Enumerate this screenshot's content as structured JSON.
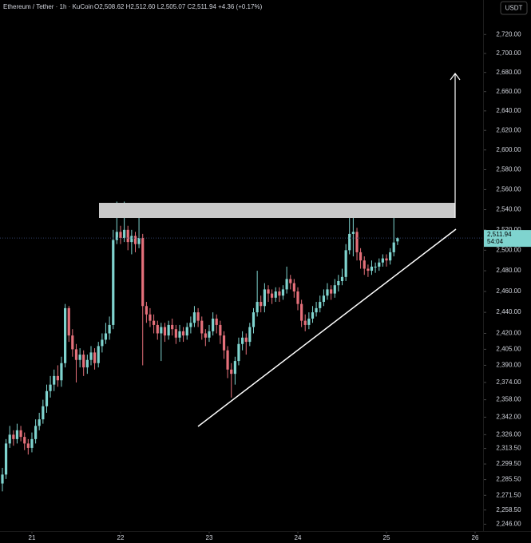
{
  "chart_data": {
    "type": "candlestick",
    "title": "Ethereum / Tether · 1h · KuCoin",
    "subtitle": "O2,508.62 H2,512.60 L2,505.07 C2,511.94 +4.36 (+0.17%)",
    "currency": "USDT",
    "price_label": "2,511.94",
    "countdown": "54:04",
    "log": true,
    "up_color": "#7fd4cf",
    "down_color": "#e5707a",
    "xlim": [
      20.64,
      26.09
    ],
    "xticks": [
      21,
      22,
      23,
      24,
      25,
      26
    ],
    "ylim": [
      2240,
      2757
    ],
    "yticks": [
      {
        "value": 2720,
        "label": "2,720.00"
      },
      {
        "value": 2700,
        "label": "2,700.00"
      },
      {
        "value": 2680,
        "label": "2,680.00"
      },
      {
        "value": 2660,
        "label": "2,660.00"
      },
      {
        "value": 2640,
        "label": "2,640.00"
      },
      {
        "value": 2620,
        "label": "2,620.00"
      },
      {
        "value": 2600,
        "label": "2,600.00"
      },
      {
        "value": 2580,
        "label": "2,580.00"
      },
      {
        "value": 2560,
        "label": "2,560.00"
      },
      {
        "value": 2540,
        "label": "2,540.00"
      },
      {
        "value": 2520,
        "label": "2,520.00"
      },
      {
        "value": 2500,
        "label": "2,500.00"
      },
      {
        "value": 2480,
        "label": "2,480.00"
      },
      {
        "value": 2460,
        "label": "2,460.00"
      },
      {
        "value": 2440,
        "label": "2,440.00"
      },
      {
        "value": 2420,
        "label": "2,420.00"
      },
      {
        "value": 2405,
        "label": "2,405.00"
      },
      {
        "value": 2390,
        "label": "2,390.00"
      },
      {
        "value": 2374,
        "label": "2,374.00"
      },
      {
        "value": 2358,
        "label": "2,358.00"
      },
      {
        "value": 2342,
        "label": "2,342.00"
      },
      {
        "value": 2326,
        "label": "2,326.00"
      },
      {
        "value": 2313.5,
        "label": "2,313.50"
      },
      {
        "value": 2299.5,
        "label": "2,299.50"
      },
      {
        "value": 2285.5,
        "label": "2,285.50"
      },
      {
        "value": 2271.5,
        "label": "2,271.50"
      },
      {
        "value": 2258.5,
        "label": "2,258.50"
      },
      {
        "value": 2246,
        "label": "2,246.00"
      }
    ],
    "x": [
      20.667,
      20.708,
      20.75,
      20.792,
      20.833,
      20.875,
      20.917,
      20.958,
      21,
      21.042,
      21.083,
      21.125,
      21.167,
      21.208,
      21.25,
      21.292,
      21.333,
      21.375,
      21.417,
      21.458,
      21.5,
      21.542,
      21.583,
      21.625,
      21.667,
      21.708,
      21.75,
      21.792,
      21.833,
      21.875,
      21.917,
      21.958,
      22,
      22.042,
      22.083,
      22.125,
      22.167,
      22.208,
      22.25,
      22.292,
      22.333,
      22.375,
      22.417,
      22.458,
      22.5,
      22.542,
      22.583,
      22.625,
      22.667,
      22.708,
      22.75,
      22.792,
      22.833,
      22.875,
      22.917,
      22.958,
      23,
      23.042,
      23.083,
      23.125,
      23.167,
      23.208,
      23.25,
      23.292,
      23.333,
      23.375,
      23.417,
      23.458,
      23.5,
      23.542,
      23.583,
      23.625,
      23.667,
      23.708,
      23.75,
      23.792,
      23.833,
      23.875,
      23.917,
      23.958,
      24,
      24.042,
      24.083,
      24.125,
      24.167,
      24.208,
      24.25,
      24.292,
      24.333,
      24.375,
      24.417,
      24.458,
      24.5,
      24.542,
      24.583,
      24.625,
      24.667,
      24.708,
      24.75,
      24.792,
      24.833,
      24.875,
      24.917,
      24.958,
      25,
      25.042,
      25.083,
      25.125
    ],
    "ohlc": [
      [
        2282,
        2296,
        2275,
        2290
      ],
      [
        2290,
        2322,
        2286,
        2318
      ],
      [
        2318,
        2334,
        2314,
        2326
      ],
      [
        2326,
        2330,
        2316,
        2322
      ],
      [
        2322,
        2336,
        2318,
        2330
      ],
      [
        2330,
        2334,
        2320,
        2324
      ],
      [
        2324,
        2328,
        2312,
        2318
      ],
      [
        2318,
        2322,
        2308,
        2314
      ],
      [
        2314,
        2328,
        2310,
        2322
      ],
      [
        2322,
        2340,
        2318,
        2334
      ],
      [
        2334,
        2346,
        2330,
        2340
      ],
      [
        2340,
        2358,
        2336,
        2352
      ],
      [
        2352,
        2372,
        2346,
        2366
      ],
      [
        2366,
        2380,
        2360,
        2372
      ],
      [
        2372,
        2386,
        2366,
        2380
      ],
      [
        2380,
        2390,
        2370,
        2376
      ],
      [
        2376,
        2398,
        2370,
        2392
      ],
      [
        2392,
        2448,
        2388,
        2444
      ],
      [
        2444,
        2446,
        2412,
        2418
      ],
      [
        2418,
        2424,
        2398,
        2405
      ],
      [
        2405,
        2410,
        2374,
        2395
      ],
      [
        2395,
        2406,
        2388,
        2400
      ],
      [
        2400,
        2404,
        2380,
        2388
      ],
      [
        2388,
        2400,
        2382,
        2395
      ],
      [
        2395,
        2408,
        2390,
        2402
      ],
      [
        2402,
        2406,
        2386,
        2392
      ],
      [
        2392,
        2412,
        2388,
        2408
      ],
      [
        2408,
        2420,
        2402,
        2414
      ],
      [
        2414,
        2430,
        2410,
        2420
      ],
      [
        2420,
        2436,
        2414,
        2428
      ],
      [
        2428,
        2520,
        2424,
        2510
      ],
      [
        2510,
        2548,
        2506,
        2518
      ],
      [
        2518,
        2524,
        2506,
        2512
      ],
      [
        2512,
        2548,
        2508,
        2520
      ],
      [
        2520,
        2524,
        2500,
        2508
      ],
      [
        2508,
        2520,
        2496,
        2514
      ],
      [
        2514,
        2518,
        2498,
        2506
      ],
      [
        2506,
        2540,
        2502,
        2512
      ],
      [
        2512,
        2516,
        2390,
        2446
      ],
      [
        2446,
        2450,
        2430,
        2438
      ],
      [
        2438,
        2444,
        2426,
        2432
      ],
      [
        2432,
        2438,
        2420,
        2428
      ],
      [
        2428,
        2432,
        2414,
        2420
      ],
      [
        2420,
        2430,
        2394,
        2426
      ],
      [
        2426,
        2430,
        2412,
        2418
      ],
      [
        2418,
        2432,
        2414,
        2428
      ],
      [
        2428,
        2434,
        2418,
        2424
      ],
      [
        2424,
        2428,
        2410,
        2416
      ],
      [
        2416,
        2428,
        2412,
        2422
      ],
      [
        2422,
        2426,
        2412,
        2418
      ],
      [
        2418,
        2430,
        2414,
        2426
      ],
      [
        2426,
        2436,
        2420,
        2430
      ],
      [
        2430,
        2446,
        2426,
        2440
      ],
      [
        2440,
        2444,
        2426,
        2432
      ],
      [
        2432,
        2436,
        2414,
        2420
      ],
      [
        2420,
        2424,
        2408,
        2416
      ],
      [
        2416,
        2428,
        2412,
        2422
      ],
      [
        2422,
        2440,
        2418,
        2434
      ],
      [
        2434,
        2438,
        2420,
        2428
      ],
      [
        2428,
        2432,
        2410,
        2418
      ],
      [
        2418,
        2422,
        2396,
        2404
      ],
      [
        2404,
        2408,
        2378,
        2386
      ],
      [
        2386,
        2392,
        2360,
        2382
      ],
      [
        2382,
        2398,
        2372,
        2394
      ],
      [
        2394,
        2416,
        2390,
        2410
      ],
      [
        2410,
        2422,
        2404,
        2416
      ],
      [
        2416,
        2420,
        2400,
        2412
      ],
      [
        2412,
        2430,
        2408,
        2426
      ],
      [
        2426,
        2444,
        2420,
        2440
      ],
      [
        2440,
        2480,
        2436,
        2450
      ],
      [
        2450,
        2456,
        2440,
        2446
      ],
      [
        2446,
        2468,
        2440,
        2462
      ],
      [
        2462,
        2466,
        2450,
        2458
      ],
      [
        2458,
        2462,
        2448,
        2454
      ],
      [
        2454,
        2464,
        2450,
        2460
      ],
      [
        2460,
        2464,
        2450,
        2456
      ],
      [
        2456,
        2466,
        2452,
        2462
      ],
      [
        2462,
        2484,
        2458,
        2472
      ],
      [
        2472,
        2476,
        2462,
        2468
      ],
      [
        2468,
        2472,
        2454,
        2460
      ],
      [
        2460,
        2464,
        2442,
        2448
      ],
      [
        2448,
        2452,
        2426,
        2432
      ],
      [
        2432,
        2438,
        2422,
        2428
      ],
      [
        2428,
        2440,
        2424,
        2434
      ],
      [
        2434,
        2446,
        2430,
        2440
      ],
      [
        2440,
        2450,
        2436,
        2444
      ],
      [
        2444,
        2456,
        2440,
        2450
      ],
      [
        2450,
        2462,
        2446,
        2456
      ],
      [
        2456,
        2468,
        2452,
        2462
      ],
      [
        2462,
        2466,
        2452,
        2458
      ],
      [
        2458,
        2472,
        2454,
        2466
      ],
      [
        2466,
        2476,
        2460,
        2470
      ],
      [
        2470,
        2482,
        2466,
        2474
      ],
      [
        2474,
        2506,
        2470,
        2500
      ],
      [
        2500,
        2540,
        2496,
        2516
      ],
      [
        2516,
        2540,
        2494,
        2518
      ],
      [
        2518,
        2522,
        2490,
        2498
      ],
      [
        2498,
        2502,
        2482,
        2490
      ],
      [
        2490,
        2494,
        2476,
        2482
      ],
      [
        2482,
        2486,
        2474,
        2480
      ],
      [
        2480,
        2490,
        2476,
        2484
      ],
      [
        2484,
        2488,
        2478,
        2484
      ],
      [
        2484,
        2492,
        2480,
        2488
      ],
      [
        2488,
        2496,
        2484,
        2492
      ],
      [
        2492,
        2496,
        2484,
        2490
      ],
      [
        2490,
        2502,
        2486,
        2498
      ],
      [
        2498,
        2536,
        2494,
        2507.58
      ],
      [
        2508.62,
        2512.6,
        2505.07,
        2511.94
      ]
    ]
  }
}
